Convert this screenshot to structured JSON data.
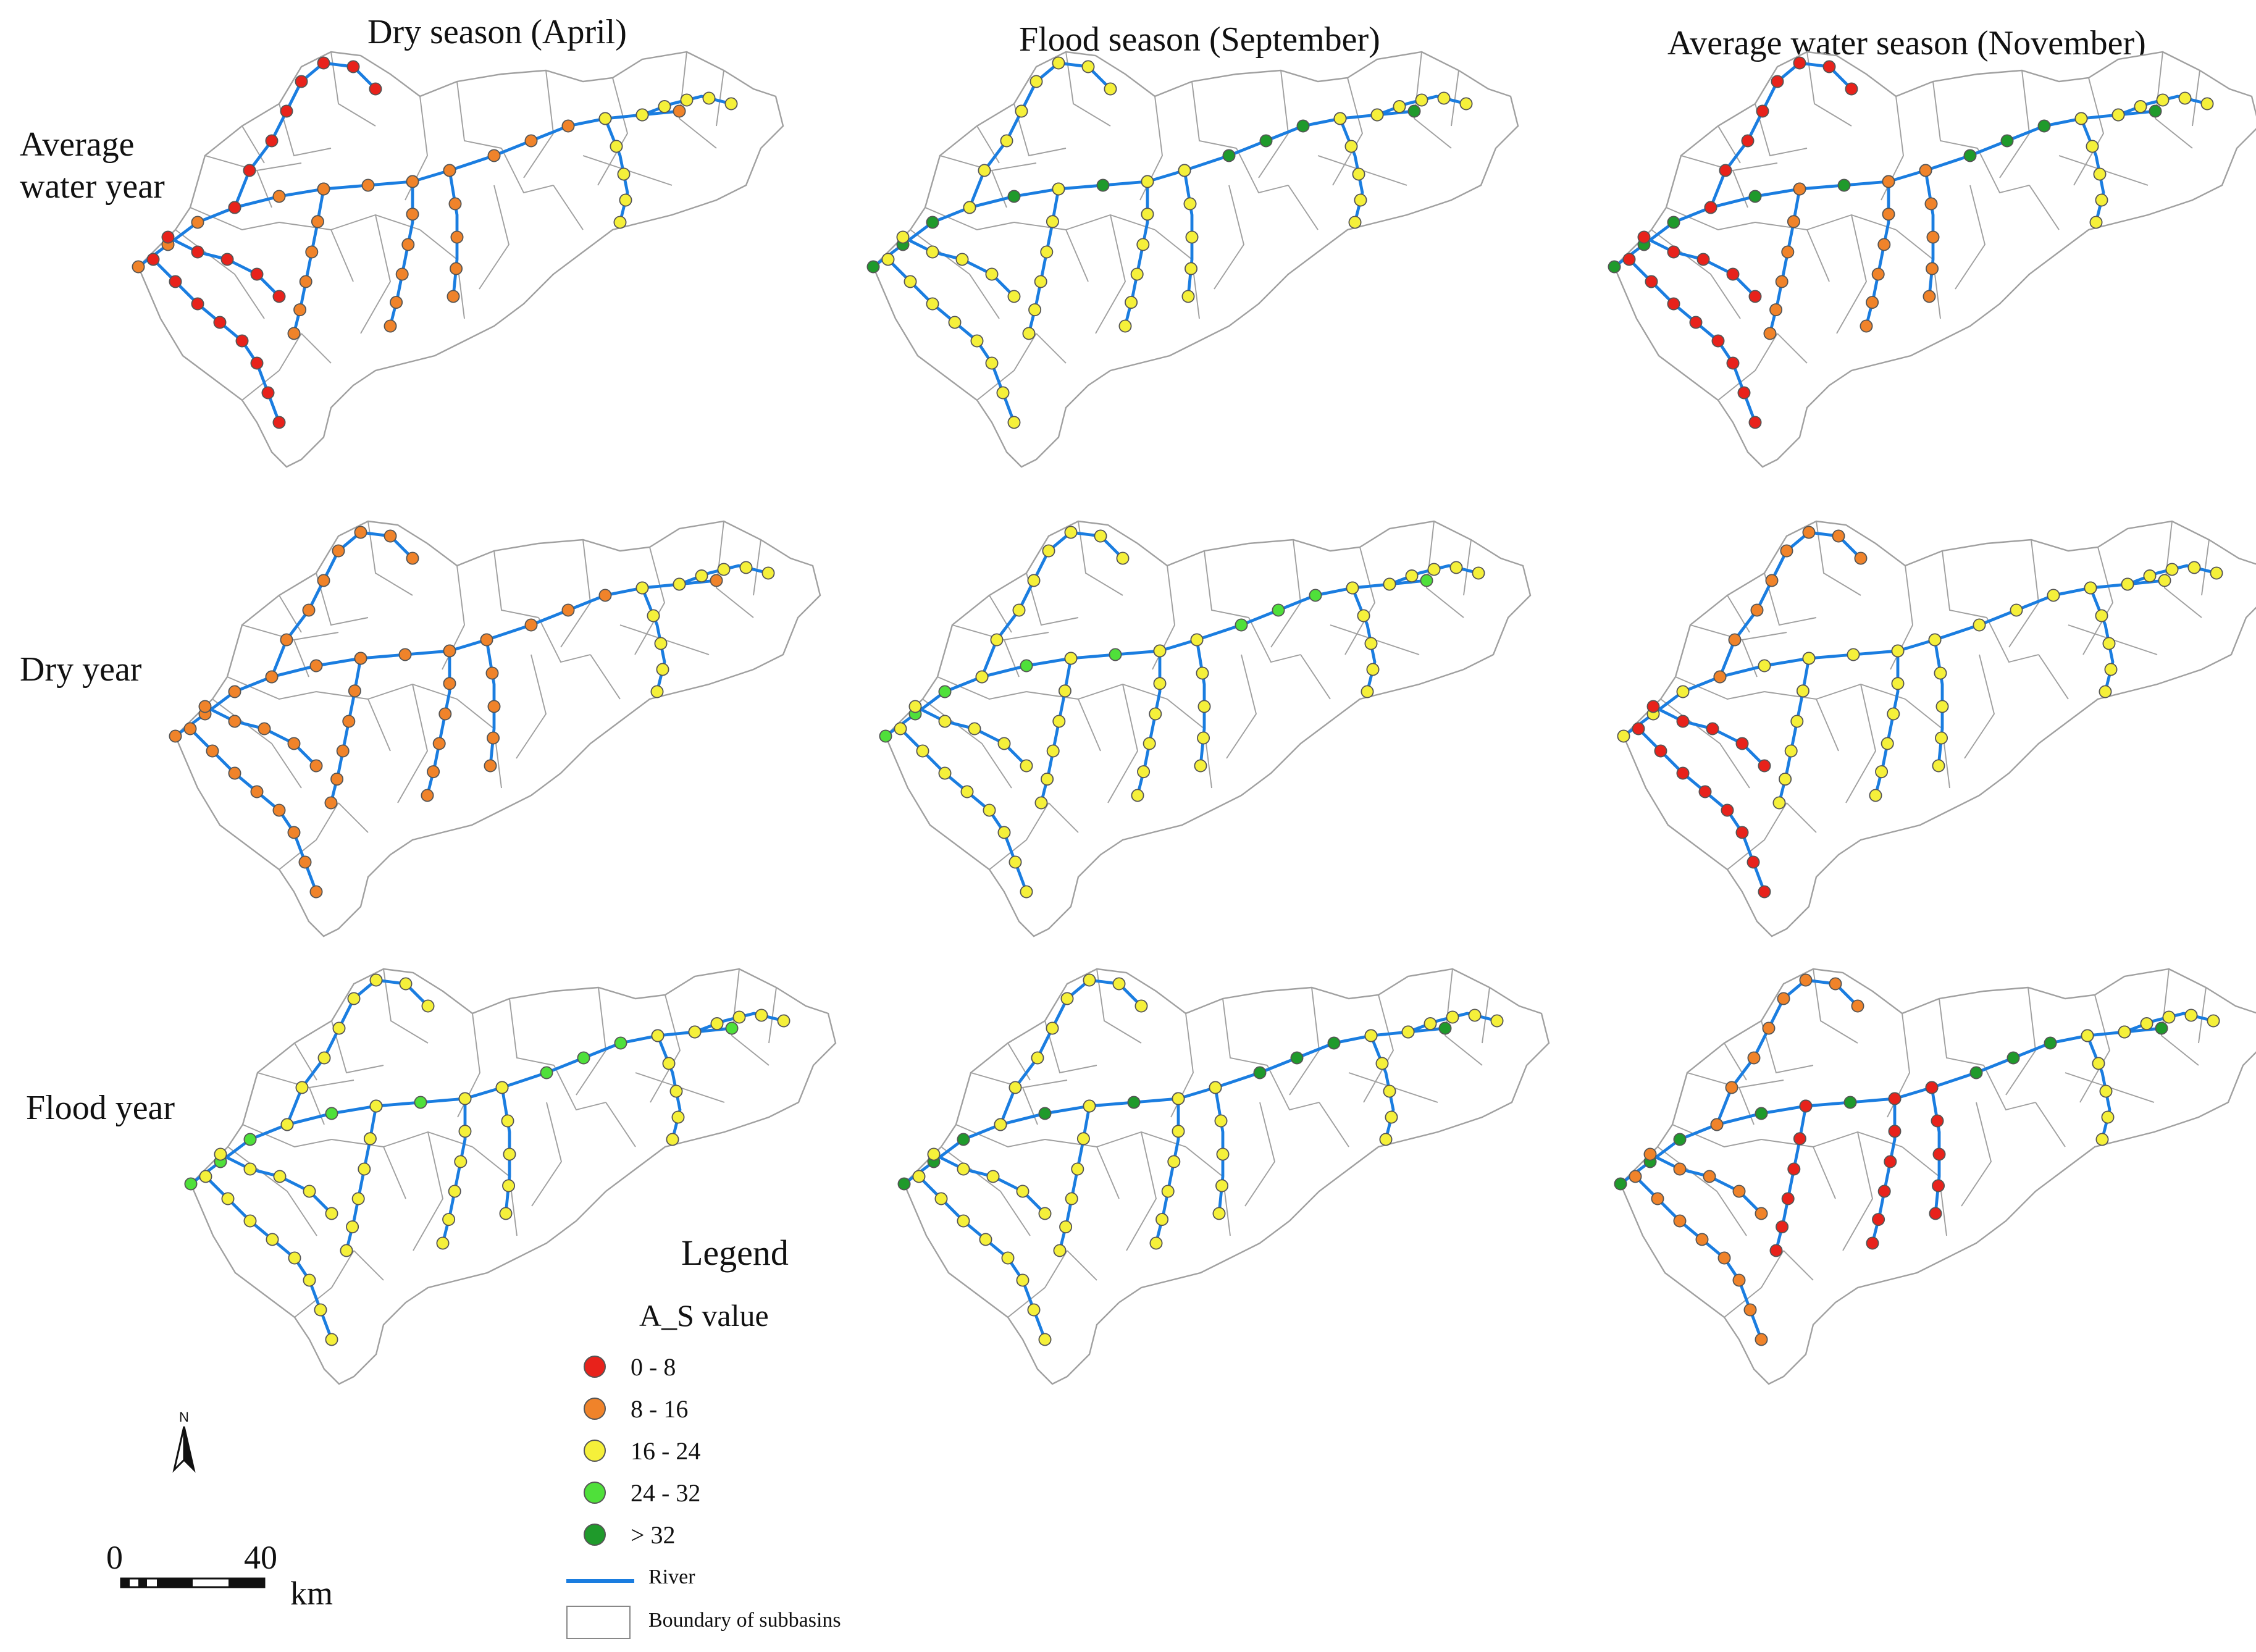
{
  "column_titles": [
    "Dry season (April)",
    "Flood season (September)",
    "Average water season (November)"
  ],
  "row_labels": [
    "Average water year",
    "Dry year",
    "Flood year"
  ],
  "legend": {
    "title": "Legend",
    "subtitle": "A_S  value",
    "classes": [
      {
        "label": "0 - 8",
        "color": "#e8221b"
      },
      {
        "label": "8 - 16",
        "color": "#f0832a"
      },
      {
        "label": "16 - 24",
        "color": "#f5f03a"
      },
      {
        "label": "24 - 32",
        "color": "#4fe03a"
      },
      {
        "label": "> 32",
        "color": "#1f9a2b"
      }
    ],
    "river_label": "River",
    "boundary_label": "Boundary of subbasins",
    "river_color": "#1a7de0",
    "boundary_color": "#a0a0a0"
  },
  "north_label": "N",
  "scale": {
    "start": "0",
    "end": "40",
    "unit": "km"
  },
  "panels": [
    {
      "row": 0,
      "col": 0,
      "main": 1,
      "trib_west": 0,
      "trib_mid": 1,
      "north": 0,
      "east": 2
    },
    {
      "row": 0,
      "col": 1,
      "main": 4,
      "trib_west": 2,
      "trib_mid": 2,
      "north": 2,
      "east": 2
    },
    {
      "row": 0,
      "col": 2,
      "main": 4,
      "trib_west": 0,
      "trib_mid": 1,
      "north": 0,
      "east": 2
    },
    {
      "row": 1,
      "col": 0,
      "main": 1,
      "trib_west": 1,
      "trib_mid": 1,
      "north": 1,
      "east": 2
    },
    {
      "row": 1,
      "col": 1,
      "main": 3,
      "trib_west": 2,
      "trib_mid": 2,
      "north": 2,
      "east": 2
    },
    {
      "row": 1,
      "col": 2,
      "main": 2,
      "trib_west": 0,
      "trib_mid": 2,
      "north": 1,
      "east": 2
    },
    {
      "row": 2,
      "col": 0,
      "main": 3,
      "trib_west": 2,
      "trib_mid": 2,
      "north": 2,
      "east": 2
    },
    {
      "row": 2,
      "col": 1,
      "main": 4,
      "trib_west": 2,
      "trib_mid": 2,
      "north": 2,
      "east": 2
    },
    {
      "row": 2,
      "col": 2,
      "main": 4,
      "trib_west": 1,
      "trib_mid": 0,
      "north": 1,
      "east": 2
    }
  ]
}
